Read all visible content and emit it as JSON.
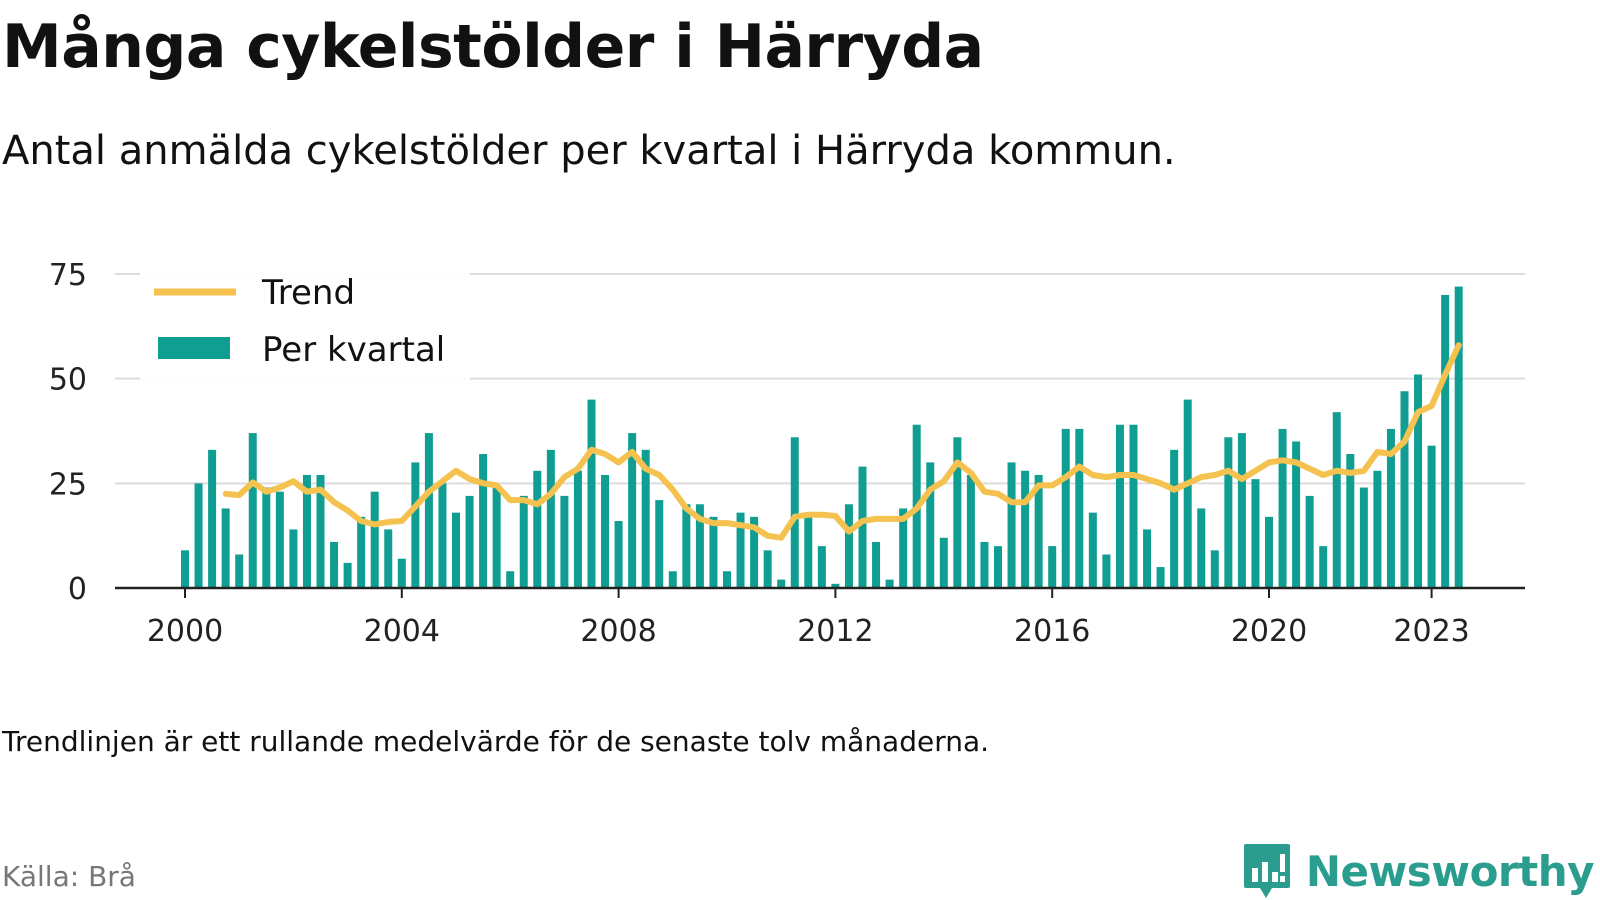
{
  "title": "Många cykelstölder i Härryda",
  "subtitle": "Antal anmälda cykelstölder per kvartal i Härryda kommun.",
  "note": "Trendlinjen är ett rullande medelvärde för de senaste tolv månaderna.",
  "source": "Källa: Brå",
  "brand": {
    "name": "Newsworthy",
    "color": "#2a9d8f"
  },
  "chart_data": {
    "type": "bar",
    "x_unit": "year",
    "ylim": [
      0,
      75
    ],
    "yticks": [
      0,
      25,
      50,
      75
    ],
    "xticks": [
      2000,
      2004,
      2008,
      2012,
      2016,
      2020,
      2023
    ],
    "grid": true,
    "legend_position": "top-left",
    "colors": {
      "bars": "#109e92",
      "trend": "#f5c250",
      "grid": "#dddddd",
      "axis": "#222222"
    },
    "x": [
      2000.0,
      2000.25,
      2000.5,
      2000.75,
      2001.0,
      2001.25,
      2001.5,
      2001.75,
      2002.0,
      2002.25,
      2002.5,
      2002.75,
      2003.0,
      2003.25,
      2003.5,
      2003.75,
      2004.0,
      2004.25,
      2004.5,
      2004.75,
      2005.0,
      2005.25,
      2005.5,
      2005.75,
      2006.0,
      2006.25,
      2006.5,
      2006.75,
      2007.0,
      2007.25,
      2007.5,
      2007.75,
      2008.0,
      2008.25,
      2008.5,
      2008.75,
      2009.0,
      2009.25,
      2009.5,
      2009.75,
      2010.0,
      2010.25,
      2010.5,
      2010.75,
      2011.0,
      2011.25,
      2011.5,
      2011.75,
      2012.0,
      2012.25,
      2012.5,
      2012.75,
      2013.0,
      2013.25,
      2013.5,
      2013.75,
      2014.0,
      2014.25,
      2014.5,
      2014.75,
      2015.0,
      2015.25,
      2015.5,
      2015.75,
      2016.0,
      2016.25,
      2016.5,
      2016.75,
      2017.0,
      2017.25,
      2017.5,
      2017.75,
      2018.0,
      2018.25,
      2018.5,
      2018.75,
      2019.0,
      2019.25,
      2019.5,
      2019.75,
      2020.0,
      2020.25,
      2020.5,
      2020.75,
      2021.0,
      2021.25,
      2021.5,
      2021.75,
      2022.0,
      2022.25,
      2022.5,
      2022.75,
      2023.0,
      2023.25,
      2023.5,
      2023.75
    ],
    "series": [
      {
        "name": "Per kvartal",
        "kind": "bar",
        "values": [
          9,
          25,
          33,
          19,
          8,
          37,
          24,
          23,
          14,
          27,
          27,
          11,
          6,
          17,
          23,
          14,
          7,
          30,
          37,
          25,
          18,
          22,
          32,
          24,
          4,
          22,
          28,
          33,
          22,
          28,
          45,
          27,
          16,
          37,
          33,
          21,
          4,
          20,
          20,
          17,
          4,
          18,
          17,
          9,
          2,
          36,
          18,
          10,
          1,
          20,
          29,
          11,
          2,
          19,
          39,
          30,
          12,
          36,
          27,
          11,
          10,
          30,
          28,
          27,
          10,
          38,
          38,
          18,
          8,
          39,
          39,
          14,
          5,
          33,
          45,
          19,
          9,
          36,
          37,
          26,
          17,
          38,
          35,
          22,
          10,
          42,
          32,
          24,
          28,
          38,
          47,
          51,
          34,
          70,
          72,
          0
        ]
      },
      {
        "name": "Trend",
        "kind": "line",
        "values": [
          null,
          null,
          null,
          22.5,
          22.2,
          25.2,
          23.0,
          24.0,
          25.5,
          23.0,
          23.5,
          20.5,
          18.5,
          16.0,
          15.2,
          15.8,
          16.0,
          19.5,
          23.0,
          25.5,
          28.0,
          26.0,
          25.0,
          24.5,
          21.0,
          21.0,
          20.0,
          22.5,
          26.5,
          28.5,
          33.0,
          32.0,
          30.0,
          32.5,
          28.5,
          27.0,
          23.5,
          19.0,
          16.5,
          15.5,
          15.5,
          15.0,
          14.5,
          12.5,
          12.0,
          17.0,
          17.5,
          17.5,
          17.2,
          13.5,
          16.0,
          16.5,
          16.5,
          16.5,
          19.0,
          23.5,
          25.5,
          30.0,
          27.5,
          23.0,
          22.5,
          20.5,
          20.5,
          24.5,
          24.5,
          26.5,
          29.0,
          27.0,
          26.5,
          27.0,
          27.0,
          26.0,
          25.0,
          23.5,
          25.0,
          26.5,
          27.0,
          28.0,
          26.0,
          28.0,
          30.0,
          30.5,
          30.0,
          28.5,
          27.0,
          28.0,
          27.5,
          28.0,
          32.5,
          32.0,
          35.0,
          42.0,
          43.5,
          51.0,
          58.0,
          null
        ]
      }
    ]
  }
}
